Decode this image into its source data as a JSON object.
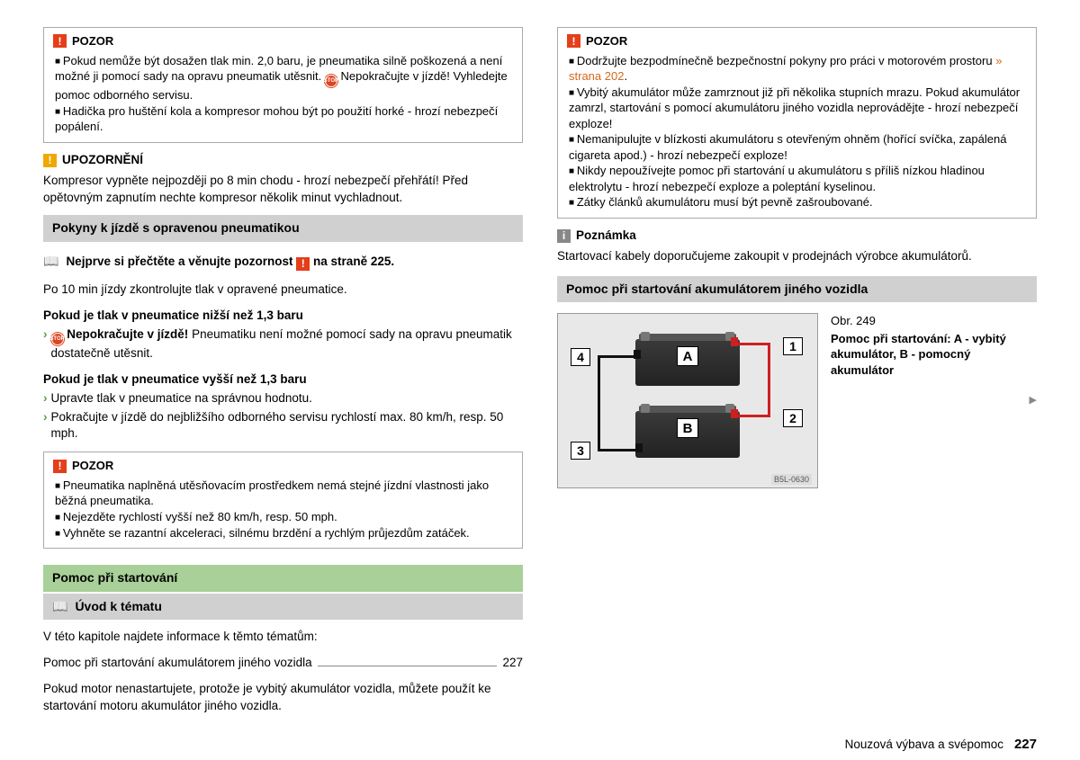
{
  "left": {
    "pozor1": {
      "title": "POZOR",
      "items": [
        "Pokud nemůže být dosažen tlak min. 2,0 baru, je pneumatika silně poškozená a není možné ji pomocí sady na opravu pneumatik utěsnit. |STOP| Nepokračujte v jízdě! Vyhledejte pomoc odborného servisu.",
        "Hadička pro huštění kola a kompresor mohou být po použití horké - hrozí nebezpečí popálení."
      ]
    },
    "upo": {
      "title": "UPOZORNĚNÍ",
      "text": "Kompresor vypněte nejpozději po 8 min chodu - hrozí nebezpečí přehřátí! Před opětovným zapnutím nechte kompresor několik minut vychladnout."
    },
    "sec1_title": "Pokyny k jízdě s opravenou pneumatikou",
    "read_first_a": "Nejprve si přečtěte a věnujte pozornost",
    "read_first_b": "na straně 225.",
    "p1": "Po 10 min jízdy zkontrolujte tlak v opravené pneumatice.",
    "h_low": "Pokud je tlak v pneumatice nižší než 1,3 baru",
    "low_items": [
      "|STOP| |B|Nepokračujte v jízdě!|/B| Pneumatiku není možné pomocí sady na opravu pneumatik dostatečně utěsnit."
    ],
    "h_high": "Pokud je tlak v pneumatice vyšší než 1,3 baru",
    "high_items": [
      "Upravte tlak v pneumatice na správnou hodnotu.",
      "Pokračujte v jízdě do nejbližšího odborného servisu rychlostí max. 80 km/h, resp. 50 mph."
    ],
    "pozor2": {
      "title": "POZOR",
      "items": [
        "Pneumatika naplněná utěsňovacím prostředkem nemá stejné jízdní vlastnosti jako běžná pneumatika.",
        "Nejezděte rychlostí vyšší než 80 km/h, resp. 50 mph.",
        "Vyhněte se razantní akceleraci, silnému brzdění a rychlým průjezdům zatáček."
      ]
    },
    "sec_green": "Pomoc při startování",
    "sub_gray": "Úvod k tématu",
    "intro": "V této kapitole najdete informace k těmto tématům:",
    "toc_label": "Pomoc při startování akumulátorem jiného vozidla",
    "toc_page": "227",
    "outro": "Pokud motor nenastartujete, protože je vybitý akumulátor vozidla, můžete použít ke startování motoru akumulátor jiného vozidla."
  },
  "right": {
    "pozor": {
      "title": "POZOR",
      "items": [
        "Dodržujte bezpodmínečně bezpečnostní pokyny pro práci v motorovém prostoru |ORANGE|» strana 202|/ORANGE|.",
        "Vybitý akumulátor může zamrznout již při několika stupních mrazu. Pokud akumulátor zamrzl, startování s pomocí akumulátoru jiného vozidla neprovádějte - hrozí nebezpečí exploze!",
        "Nemanipulujte v blízkosti akumulátoru s otevřeným ohněm (hořící svíčka, zapálená cigareta apod.) - hrozí nebezpečí exploze!",
        "Nikdy nepoužívejte pomoc při startování u akumulátoru s příliš nízkou hladinou elektrolytu - hrozí nebezpečí exploze a poleptání kyselinou.",
        "Zátky článků akumulátoru musí být pevně zašroubované."
      ]
    },
    "note_title": "Poznámka",
    "note_text": "Startovací kabely doporučujeme zakoupit v prodejnách výrobce akumulátorů.",
    "sec_title": "Pomoc při startování akumulátorem jiného vozidla",
    "fig_num": "Obr. 249",
    "fig_caption": "Pomoc při startování: A - vybitý akumulátor, B - pomocný akumulátor",
    "fig_code": "B5L-0630",
    "labels": {
      "a": "A",
      "b": "B",
      "n1": "1",
      "n2": "2",
      "n3": "3",
      "n4": "4"
    }
  },
  "footer": {
    "section": "Nouzová výbava a svépomoc",
    "page": "227"
  }
}
